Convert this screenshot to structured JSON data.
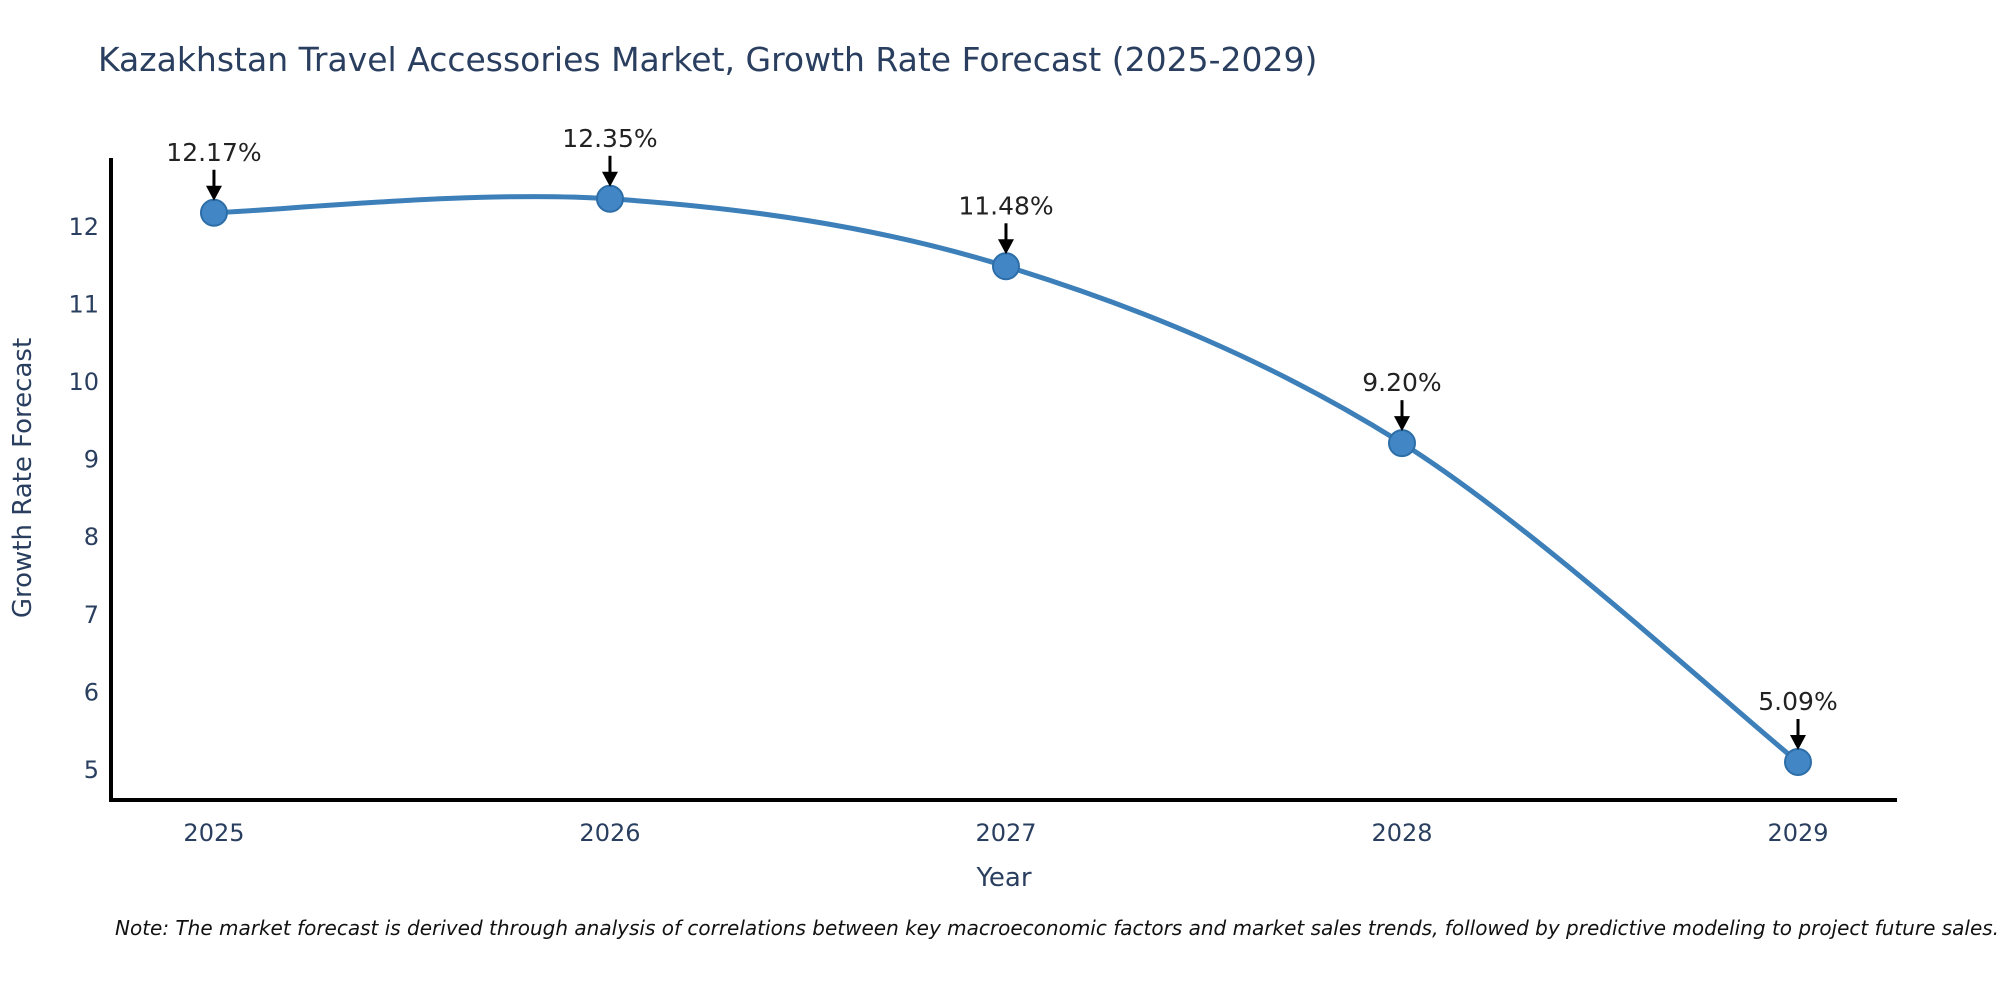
{
  "chart_data": {
    "type": "line",
    "title": "Kazakhstan Travel Accessories Market, Growth Rate Forecast (2025-2029)",
    "xlabel": "Year",
    "ylabel": "Growth Rate Forecast",
    "categories": [
      2025,
      2026,
      2027,
      2028,
      2029
    ],
    "series": [
      {
        "name": "Growth Rate Forecast",
        "values": [
          12.17,
          12.35,
          11.48,
          9.2,
          5.09
        ]
      }
    ],
    "point_labels": [
      "12.17%",
      "12.35%",
      "11.48%",
      "9.20%",
      "5.09%"
    ],
    "yticks": [
      5,
      6,
      7,
      8,
      9,
      10,
      11,
      12
    ],
    "xlim": [
      2024.74,
      2029.25
    ],
    "ylim": [
      4.6,
      12.85
    ],
    "grid": false,
    "legend": false,
    "line_shape": "spline",
    "colors": {
      "line": "#3c7fb9",
      "marker_fill": "#4286c5",
      "marker_edge": "#2d6ea8",
      "axis": "#000000",
      "tick_text": "#2a3f5f",
      "annotation_text": "#222222",
      "arrow": "#000000"
    }
  },
  "note": {
    "text": "Note: The market forecast is derived through analysis of correlations between key macroeconomic factors and market sales trends, followed by predictive modeling to project future sales."
  }
}
